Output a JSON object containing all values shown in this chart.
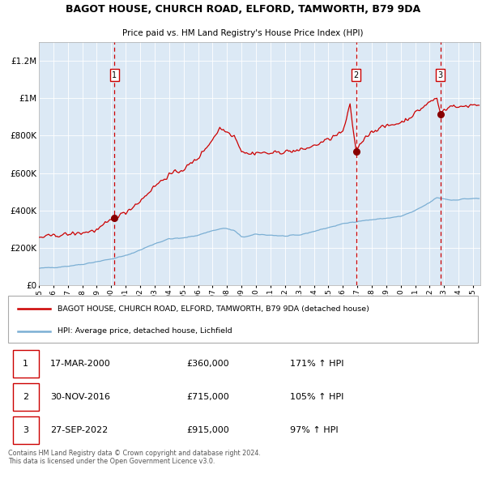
{
  "title": "BAGOT HOUSE, CHURCH ROAD, ELFORD, TAMWORTH, B79 9DA",
  "subtitle": "Price paid vs. HM Land Registry's House Price Index (HPI)",
  "background_color": "#ffffff",
  "plot_bg_color": "#dce9f5",
  "red_line_color": "#cc0000",
  "blue_line_color": "#7bafd4",
  "sale_marker_color": "#880000",
  "dashed_line_color": "#cc0000",
  "grid_color": "#ffffff",
  "ylim": [
    0,
    1300000
  ],
  "yticks": [
    0,
    200000,
    400000,
    600000,
    800000,
    1000000,
    1200000
  ],
  "ytick_labels": [
    "£0",
    "£200K",
    "£400K",
    "£600K",
    "£800K",
    "£1M",
    "£1.2M"
  ],
  "x_start_year": 1995,
  "x_end_year": 2025,
  "sale_events": [
    {
      "label": "1",
      "date_str": "17-MAR-2000",
      "year": 2000.21,
      "price": 360000,
      "hpi_pct": "171%"
    },
    {
      "label": "2",
      "date_str": "30-NOV-2016",
      "year": 2016.92,
      "price": 715000,
      "hpi_pct": "105%"
    },
    {
      "label": "3",
      "date_str": "27-SEP-2022",
      "year": 2022.75,
      "price": 915000,
      "hpi_pct": "97%"
    }
  ],
  "legend_red_label": "BAGOT HOUSE, CHURCH ROAD, ELFORD, TAMWORTH, B79 9DA (detached house)",
  "legend_blue_label": "HPI: Average price, detached house, Lichfield",
  "footer_text": "Contains HM Land Registry data © Crown copyright and database right 2024.\nThis data is licensed under the Open Government Licence v3.0."
}
